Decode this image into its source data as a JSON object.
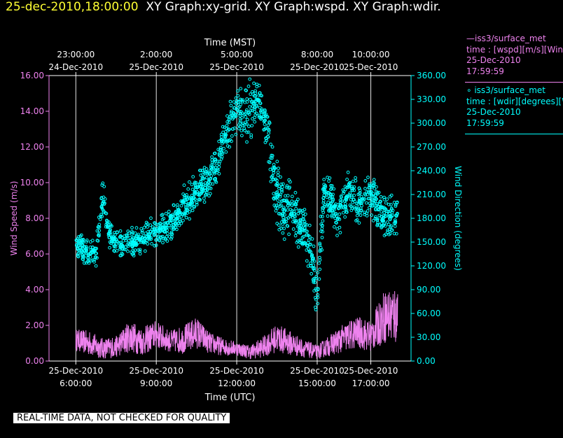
{
  "header": {
    "datetime": "25-dec-2010,18:00:00",
    "titles": "XY Graph:xy-grid.  XY Graph:wspd.  XY Graph:wdir."
  },
  "legend": {
    "series1": {
      "line1": "—iss3/surface_met",
      "line2": "time : [wspd][m/s][Wind",
      "line3": "25-Dec-2010",
      "line4": "17:59:59"
    },
    "series2": {
      "line1": "∘ iss3/surface_met",
      "line2": "time : [wdir][degrees][W",
      "line3": "25-Dec-2010",
      "line4": "17:59:59"
    }
  },
  "disclaimer": "REAL-TIME DATA, NOT CHECKED FOR QUALITY",
  "colors": {
    "wspd": "#ee82ee",
    "wdir": "#00ffff",
    "axis": "#ffffff",
    "title_date": "#ffff33"
  },
  "chart_data": {
    "type": "scatter",
    "top_axis_title": "Time (MST)",
    "bottom_axis_title": "Time (UTC)",
    "left_axis_title": "Wind Speed (m/s)",
    "right_axis_title": "Wind Direction (degrees)",
    "x_unit": "hours since 25-Dec-2010 00:00 UTC",
    "xlim": [
      5.0,
      18.5
    ],
    "ylim_left": [
      0,
      16
    ],
    "ylim_right": [
      0,
      360
    ],
    "left_ticks": [
      "0.00",
      "2.00",
      "4.00",
      "6.00",
      "8.00",
      "10.00",
      "12.00",
      "14.00",
      "16.00"
    ],
    "right_ticks": [
      "0.00",
      "30.00",
      "60.00",
      "90.00",
      "120.00",
      "150.00",
      "180.00",
      "210.00",
      "240.00",
      "270.00",
      "300.00",
      "330.00",
      "360.00"
    ],
    "bottom_ticks": [
      {
        "x": 6,
        "date": "25-Dec-2010",
        "time": "6:00:00"
      },
      {
        "x": 9,
        "date": "25-Dec-2010",
        "time": "9:00:00"
      },
      {
        "x": 12,
        "date": "25-Dec-2010",
        "time": "12:00:00"
      },
      {
        "x": 15,
        "date": "25-Dec-2010",
        "time": "15:00:00"
      },
      {
        "x": 17,
        "date": "25-Dec-2010",
        "time": "17:00:00"
      }
    ],
    "top_ticks": [
      {
        "x": 6,
        "time": "23:00:00",
        "date": "24-Dec-2010"
      },
      {
        "x": 9,
        "time": "2:00:00",
        "date": "25-Dec-2010"
      },
      {
        "x": 12,
        "time": "5:00:00",
        "date": "25-Dec-2010"
      },
      {
        "x": 15,
        "time": "8:00:00",
        "date": "25-Dec-2010"
      },
      {
        "x": 17,
        "time": "10:00:00",
        "date": "25-Dec-2010"
      }
    ],
    "grid": true,
    "legend_position": "right",
    "series": [
      {
        "name": "iss3/surface_met time : [wspd][m/s]",
        "axis": "left",
        "style": "line",
        "color": "#ee82ee",
        "x": [
          6.0,
          6.5,
          7.0,
          7.5,
          8.0,
          8.5,
          9.0,
          9.5,
          10.0,
          10.5,
          11.0,
          11.5,
          12.0,
          12.5,
          13.0,
          13.5,
          14.0,
          14.5,
          15.0,
          15.5,
          16.0,
          16.5,
          17.0,
          17.5,
          18.0
        ],
        "y": [
          1.2,
          1.0,
          0.7,
          0.8,
          1.4,
          1.1,
          1.5,
          1.1,
          1.2,
          1.6,
          1.0,
          0.8,
          0.7,
          0.5,
          0.8,
          1.3,
          1.0,
          0.7,
          0.5,
          0.9,
          1.3,
          1.6,
          1.4,
          2.5,
          2.6
        ],
        "amplitude": [
          0.6,
          0.7,
          0.6,
          0.6,
          0.9,
          0.8,
          0.8,
          0.6,
          0.8,
          0.9,
          0.6,
          0.5,
          0.4,
          0.4,
          0.6,
          0.8,
          0.7,
          0.5,
          0.4,
          0.6,
          0.8,
          0.9,
          0.9,
          1.5,
          1.8
        ]
      },
      {
        "name": "iss3/surface_met time : [wdir][degrees]",
        "axis": "right",
        "style": "circles",
        "color": "#00ffff",
        "x": [
          6.0,
          6.25,
          6.5,
          6.75,
          7.0,
          7.25,
          7.5,
          7.75,
          8.0,
          8.25,
          8.5,
          8.75,
          9.0,
          9.25,
          9.5,
          9.75,
          10.0,
          10.25,
          10.5,
          10.75,
          11.0,
          11.25,
          11.5,
          11.75,
          12.0,
          12.25,
          12.5,
          12.75,
          13.0,
          13.25,
          13.5,
          13.75,
          14.0,
          14.25,
          14.5,
          14.75,
          15.0,
          15.25,
          15.5,
          15.75,
          16.0,
          16.25,
          16.5,
          16.75,
          17.0,
          17.25,
          17.5,
          17.75,
          18.0
        ],
        "y": [
          148,
          142,
          138,
          135,
          210,
          158,
          150,
          147,
          148,
          150,
          155,
          160,
          165,
          168,
          170,
          180,
          195,
          205,
          215,
          222,
          228,
          250,
          275,
          300,
          310,
          315,
          318,
          330,
          312,
          255,
          215,
          185,
          200,
          175,
          165,
          140,
          80,
          215,
          200,
          180,
          200,
          215,
          200,
          205,
          210,
          195,
          175,
          185,
          180
        ],
        "spread": [
          18,
          18,
          20,
          22,
          25,
          22,
          20,
          20,
          20,
          20,
          20,
          20,
          22,
          22,
          22,
          22,
          25,
          28,
          25,
          25,
          25,
          28,
          30,
          30,
          30,
          40,
          45,
          30,
          30,
          45,
          45,
          40,
          40,
          35,
          35,
          35,
          40,
          35,
          30,
          30,
          30,
          30,
          30,
          30,
          30,
          30,
          35,
          35,
          30
        ]
      }
    ]
  }
}
